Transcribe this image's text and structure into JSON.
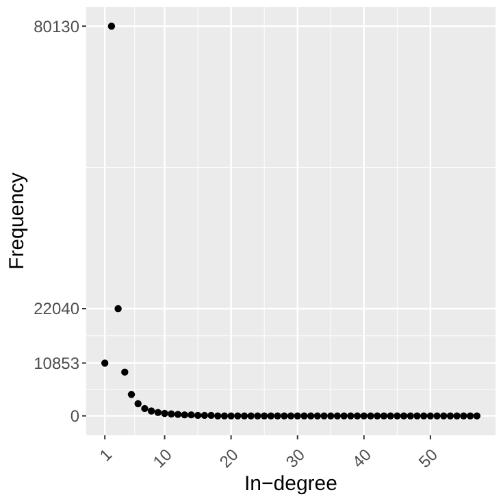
{
  "chart_data": {
    "type": "scatter",
    "xlabel": "In−degree",
    "ylabel": "Frequency",
    "x": [
      1,
      2,
      3,
      4,
      5,
      6,
      7,
      8,
      9,
      10,
      11,
      12,
      13,
      14,
      15,
      16,
      17,
      18,
      19,
      20,
      21,
      22,
      23,
      24,
      25,
      26,
      27,
      28,
      29,
      30,
      31,
      32,
      33,
      34,
      35,
      36,
      37,
      38,
      39,
      40,
      41,
      42,
      43,
      44,
      45,
      46,
      47,
      48,
      49,
      50,
      51,
      52,
      53,
      54,
      55,
      56,
      57
    ],
    "series": [
      {
        "color": "#000000",
        "values": [
          10853,
          80130,
          22040,
          9000,
          4400,
          2500,
          1500,
          1000,
          700,
          500,
          400,
          300,
          200,
          200,
          100,
          100,
          100,
          0,
          0,
          0,
          0,
          0,
          0,
          0,
          0,
          0,
          0,
          0,
          0,
          0,
          0,
          0,
          0,
          0,
          0,
          0,
          0,
          0,
          0,
          0,
          0,
          0,
          0,
          0,
          0,
          0,
          0,
          0,
          0,
          0,
          0,
          0,
          0,
          0,
          0,
          0,
          0
        ]
      }
    ],
    "xlim": [
      -1.8,
      59.8
    ],
    "xticks": [
      1,
      10,
      20,
      30,
      40,
      50
    ],
    "ylim": [
      -4000,
      84100
    ],
    "yticks": [
      0,
      10853,
      22040,
      80130
    ],
    "grid": true,
    "marker": "circle"
  }
}
